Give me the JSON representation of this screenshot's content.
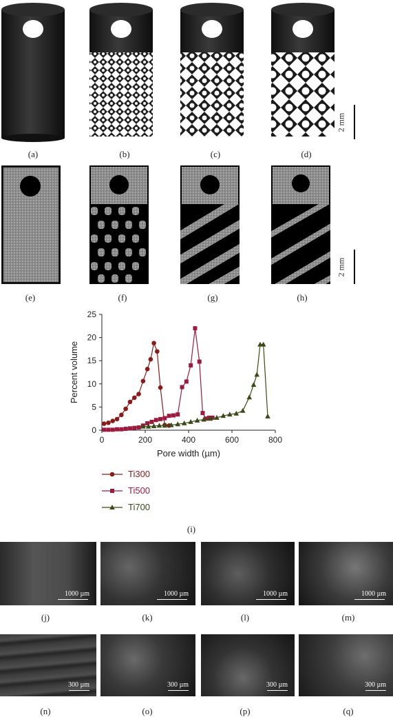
{
  "figure": {
    "row1_labels": [
      "(a)",
      "(b)",
      "(c)",
      "(d)"
    ],
    "row2_labels": [
      "(e)",
      "(f)",
      "(g)",
      "(h)"
    ],
    "chart_label": "(i)",
    "row3_labels": [
      "(j)",
      "(k)",
      "(l)",
      "(m)"
    ],
    "row4_labels": [
      "(n)",
      "(o)",
      "(p)",
      "(q)"
    ],
    "scale_mm": "2 mm",
    "scale_1000": "1000 µm",
    "scale_300": "300 µm"
  },
  "colors": {
    "ti300": "#8b1a1a",
    "ti500": "#9b1b3e",
    "ti700": "#3b4a16"
  },
  "chart_data": {
    "type": "line",
    "xlabel": "Pore width (µm)",
    "ylabel": "Percent volume",
    "xlim": [
      0,
      800
    ],
    "ylim": [
      0,
      25
    ],
    "xticks": [
      0,
      200,
      400,
      600,
      800
    ],
    "yticks": [
      0,
      5,
      10,
      15,
      20,
      25
    ],
    "legend": "bottom-left, below axis",
    "series": [
      {
        "name": "Ti300",
        "marker": "circle",
        "x": [
          10,
          30,
          50,
          70,
          90,
          110,
          130,
          150,
          170,
          190,
          210,
          225,
          240,
          255,
          270,
          290,
          310
        ],
        "y": [
          1.4,
          1.6,
          2.0,
          2.4,
          3.3,
          4.6,
          6.1,
          7.0,
          7.8,
          10.6,
          13.2,
          15.3,
          18.8,
          17.0,
          9.2,
          1.1,
          1.0
        ]
      },
      {
        "name": "Ti500",
        "marker": "square",
        "x": [
          10,
          30,
          50,
          70,
          90,
          110,
          130,
          150,
          170,
          190,
          210,
          230,
          250,
          270,
          290,
          310,
          330,
          350,
          370,
          390,
          410,
          430,
          450,
          465,
          480,
          495,
          510
        ],
        "y": [
          0.1,
          0.1,
          0.1,
          0.2,
          0.2,
          0.3,
          0.4,
          0.5,
          0.6,
          1.0,
          1.5,
          1.8,
          2.2,
          2.4,
          2.6,
          3.1,
          3.2,
          3.4,
          9.3,
          10.5,
          14.0,
          22.0,
          14.8,
          3.7,
          2.5,
          2.7,
          2.7
        ]
      },
      {
        "name": "Ti700",
        "marker": "triangle",
        "x": [
          190,
          215,
          240,
          265,
          290,
          320,
          350,
          380,
          410,
          440,
          470,
          500,
          530,
          560,
          590,
          620,
          650,
          680,
          700,
          715,
          730,
          745,
          765
        ],
        "y": [
          0.8,
          0.8,
          0.9,
          1.0,
          1.0,
          1.1,
          1.3,
          1.5,
          1.8,
          2.1,
          2.3,
          2.5,
          2.7,
          3.1,
          3.4,
          3.6,
          4.2,
          7.1,
          9.8,
          12.0,
          18.5,
          18.5,
          3.0
        ]
      }
    ]
  }
}
